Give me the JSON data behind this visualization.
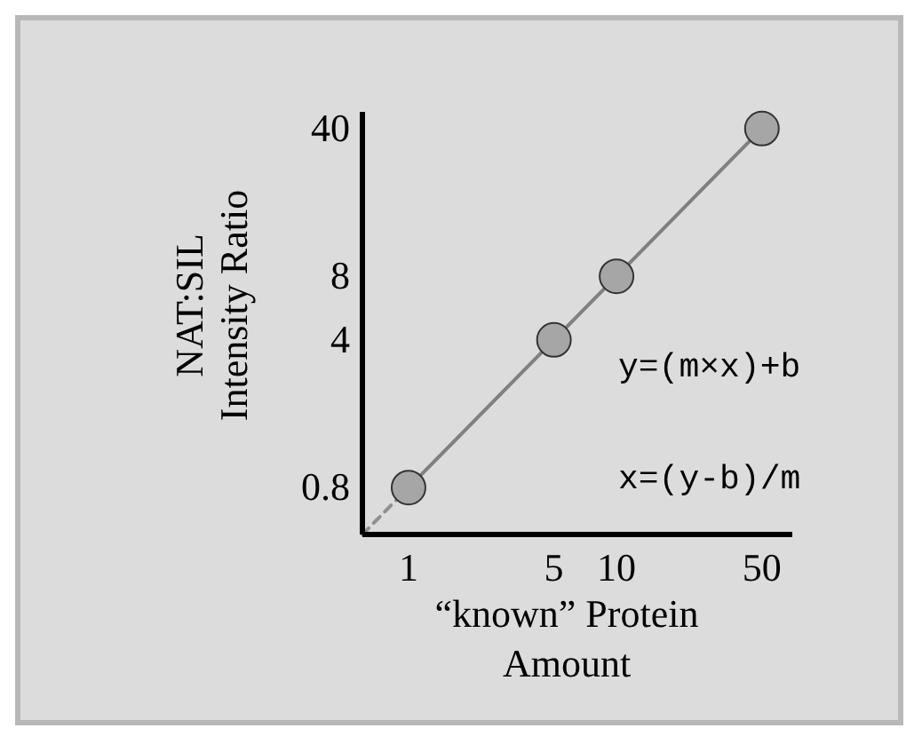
{
  "chart_data": {
    "type": "scatter",
    "ylabel": "NAT:SIL\nIntensity Ratio",
    "xlabel": "“known” Protein\nAmount",
    "log": "xy",
    "xlim": [
      0.6,
      70
    ],
    "xticks": [
      1,
      5,
      10,
      50
    ],
    "ylim": [
      0.48,
      48
    ],
    "yticks": [
      0.8,
      4,
      8,
      40
    ],
    "series": [
      {
        "type": "line",
        "x": [
          0.6,
          1
        ],
        "values": [
          0.48,
          0.8
        ],
        "color": "#909090",
        "line_style": "dashed",
        "marker": "none"
      },
      {
        "type": "line",
        "x": [
          1,
          50
        ],
        "values": [
          0.8,
          40
        ],
        "color": "#808080",
        "line_style": "solid",
        "marker": "none"
      },
      {
        "x": [
          1,
          5,
          10,
          50
        ],
        "values": [
          0.8,
          4,
          8,
          40
        ],
        "color": "#a6a6a6",
        "marker": "circle"
      }
    ],
    "annotations": [
      "y=(m×x)+b",
      "x=(y-b)/m"
    ]
  }
}
